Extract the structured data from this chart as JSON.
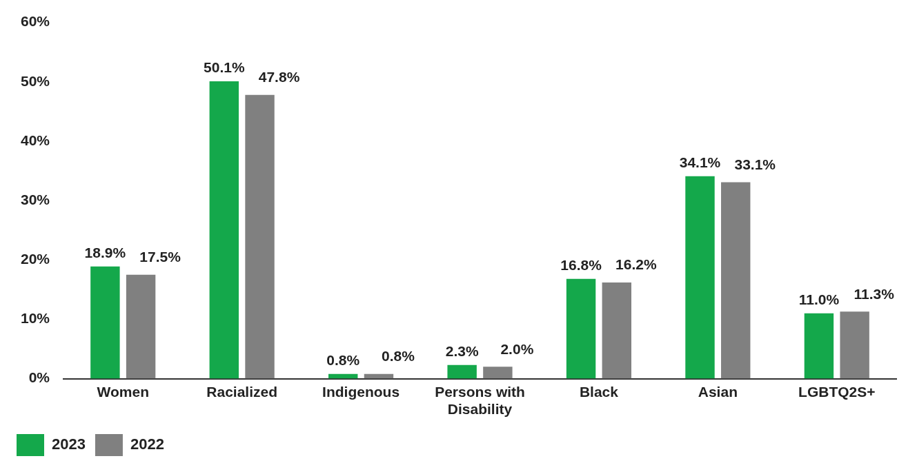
{
  "chart_data": {
    "type": "bar",
    "categories": [
      "Women",
      "Racialized",
      "Indigenous",
      "Persons with Disability",
      "Black",
      "Asian",
      "LGBTQ2S+"
    ],
    "series": [
      {
        "name": "2023",
        "color": "#14a84b",
        "values": [
          18.9,
          50.1,
          0.8,
          2.3,
          16.8,
          34.1,
          11.0
        ],
        "value_labels": [
          "18.9%",
          "50.1%",
          "0.8%",
          "2.3%",
          "16.8%",
          "34.1%",
          "11.0%"
        ]
      },
      {
        "name": "2022",
        "color": "#808080",
        "values": [
          17.5,
          47.8,
          0.8,
          2.0,
          16.2,
          33.1,
          11.3
        ],
        "value_labels": [
          "17.5%",
          "47.8%",
          "0.8%",
          "2.0%",
          "16.2%",
          "33.1%",
          "11.3%"
        ]
      }
    ],
    "ylim": [
      0,
      60
    ],
    "yticks": [
      {
        "value": 0,
        "label": "0%"
      },
      {
        "value": 10,
        "label": "10%"
      },
      {
        "value": 20,
        "label": "20%"
      },
      {
        "value": 30,
        "label": "30%"
      },
      {
        "value": 40,
        "label": "40%"
      },
      {
        "value": 50,
        "label": "50%"
      },
      {
        "value": 60,
        "label": "60%"
      }
    ],
    "grid": false,
    "legend": "bottom left"
  }
}
